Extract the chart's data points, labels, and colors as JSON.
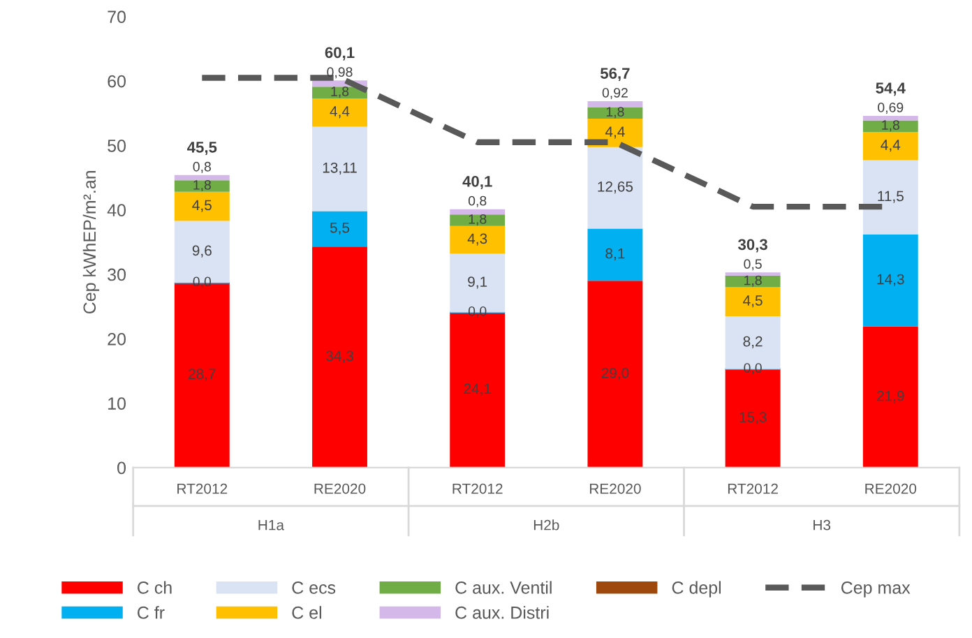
{
  "chart_data": {
    "type": "bar",
    "stacked": true,
    "ylabel": "Cep kWhEP/m².an",
    "categories": [
      "RT2012",
      "RE2020",
      "RT2012",
      "RE2020",
      "RT2012",
      "RE2020"
    ],
    "annotations": [
      "H1a",
      "H2b",
      "H3"
    ],
    "ylim": [
      0,
      70
    ],
    "yticks": [
      0,
      10,
      20,
      30,
      40,
      50,
      60,
      70
    ],
    "grid": false,
    "legend": "bottom",
    "series": [
      {
        "name": "C ch",
        "color": "#ff0000",
        "values": [
          28.7,
          34.3,
          24.1,
          29.0,
          15.3,
          21.9
        ],
        "value_labels": [
          "28,7",
          "34,3",
          "24,1",
          "29,0",
          "15,3",
          "21,9"
        ]
      },
      {
        "name": "C fr",
        "color": "#00b0f0",
        "values": [
          0.0,
          5.5,
          0.0,
          8.1,
          0.0,
          14.3
        ],
        "value_labels": [
          "0,0",
          "5,5",
          "0,0",
          "8,1",
          "0,0",
          "14,3"
        ]
      },
      {
        "name": "C ecs",
        "color": "#dae3f3",
        "values": [
          9.6,
          13.11,
          9.1,
          12.65,
          8.2,
          11.5
        ],
        "value_labels": [
          "9,6",
          "13,11",
          "9,1",
          "12,65",
          "8,2",
          "11,5"
        ]
      },
      {
        "name": "C el",
        "color": "#ffc000",
        "values": [
          4.5,
          4.4,
          4.3,
          4.4,
          4.5,
          4.4
        ],
        "value_labels": [
          "4,5",
          "4,4",
          "4,3",
          "4,4",
          "4,5",
          "4,4"
        ]
      },
      {
        "name": "C aux. Ventil",
        "color": "#70ad47",
        "values": [
          1.8,
          1.8,
          1.8,
          1.8,
          1.8,
          1.8
        ],
        "value_labels": [
          "1,8",
          "1,8",
          "1,8",
          "1,8",
          "1,8",
          "1,8"
        ]
      },
      {
        "name": "C aux. Distri",
        "color": "#d5b8ea",
        "values": [
          0.8,
          0.98,
          0.8,
          0.92,
          0.5,
          0.69
        ],
        "value_labels": [
          "0,8",
          "0,98",
          "0,8",
          "0,92",
          "0,5",
          "0,69"
        ]
      },
      {
        "name": "C depl",
        "color": "#9e480e",
        "values": [
          null,
          null,
          null,
          null,
          null,
          null
        ]
      },
      {
        "name": "Cep max",
        "type": "line",
        "color": "#595959",
        "line_style": "dashed",
        "marker": "none",
        "values": [
          60.5,
          60.5,
          50.5,
          50.5,
          40.5,
          40.5
        ]
      }
    ],
    "totals": [
      "45,5",
      "60,1",
      "40,1",
      "56,7",
      "30,3",
      "54,4"
    ]
  }
}
